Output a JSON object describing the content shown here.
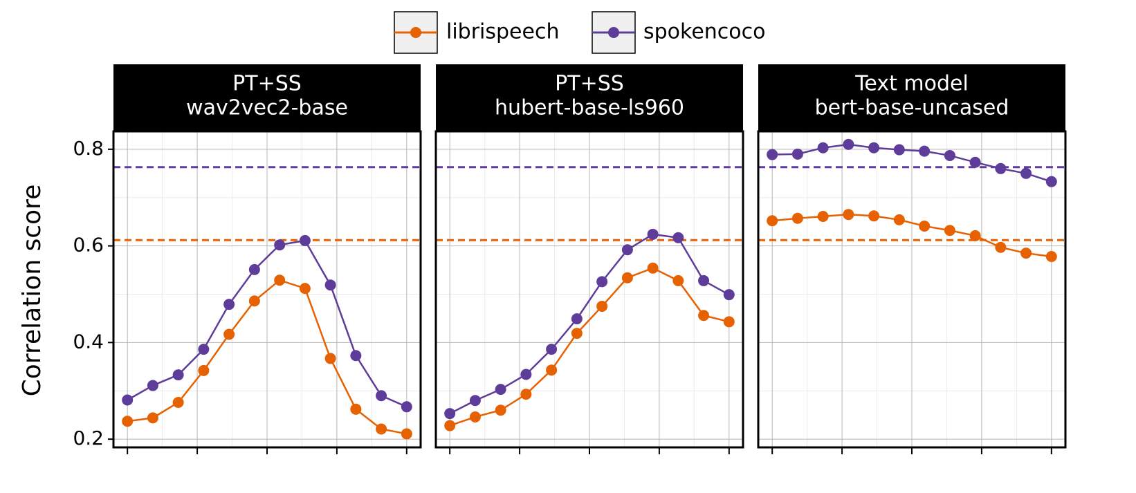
{
  "chart_data": [
    {
      "type": "line",
      "title": [
        "PT+SS",
        "wav2vec2-base"
      ],
      "ylabel": "Correlation score",
      "x": [
        0,
        0.091,
        0.182,
        0.273,
        0.364,
        0.455,
        0.545,
        0.636,
        0.727,
        0.818,
        0.909,
        1
      ],
      "xlim": [
        -0.05,
        1.05
      ],
      "xticks": [
        0,
        0.25,
        0.5,
        0.75,
        1
      ],
      "minor_xticks": [
        0.125,
        0.375,
        0.625,
        0.875
      ],
      "ylim": [
        0.183,
        0.837
      ],
      "yticks": [
        0.2,
        0.4,
        0.6,
        0.8
      ],
      "minor_yticks": [
        0.3,
        0.5,
        0.7
      ],
      "grid": true,
      "series": [
        {
          "name": "librispeech",
          "color": "#e66101",
          "reference": 0.612,
          "values": [
            0.237,
            0.244,
            0.276,
            0.342,
            0.417,
            0.486,
            0.529,
            0.512,
            0.367,
            0.262,
            0.221,
            0.211
          ]
        },
        {
          "name": "spokencoco",
          "color": "#5e3c99",
          "reference": 0.763,
          "values": [
            0.281,
            0.311,
            0.333,
            0.386,
            0.479,
            0.551,
            0.602,
            0.611,
            0.519,
            0.373,
            0.29,
            0.267
          ]
        }
      ]
    },
    {
      "type": "line",
      "title": [
        "PT+SS",
        "hubert-base-ls960"
      ],
      "x": [
        0,
        0.091,
        0.182,
        0.273,
        0.364,
        0.455,
        0.545,
        0.636,
        0.727,
        0.818,
        0.909,
        1
      ],
      "xlim": [
        -0.05,
        1.05
      ],
      "xticks": [
        0,
        0.25,
        0.5,
        0.75,
        1
      ],
      "minor_xticks": [
        0.125,
        0.375,
        0.625,
        0.875
      ],
      "ylim": [
        0.183,
        0.837
      ],
      "yticks": [
        0.2,
        0.4,
        0.6,
        0.8
      ],
      "minor_yticks": [
        0.3,
        0.5,
        0.7
      ],
      "grid": true,
      "series": [
        {
          "name": "librispeech",
          "color": "#e66101",
          "reference": 0.612,
          "values": [
            0.228,
            0.246,
            0.26,
            0.293,
            0.343,
            0.419,
            0.475,
            0.534,
            0.554,
            0.528,
            0.456,
            0.443
          ]
        },
        {
          "name": "spokencoco",
          "color": "#5e3c99",
          "reference": 0.763,
          "values": [
            0.253,
            0.28,
            0.303,
            0.334,
            0.386,
            0.449,
            0.526,
            0.592,
            0.624,
            0.617,
            0.528,
            0.499
          ]
        }
      ]
    },
    {
      "type": "line",
      "title": [
        "Text model",
        "bert-base-uncased"
      ],
      "x": [
        0,
        0.091,
        0.182,
        0.273,
        0.364,
        0.455,
        0.545,
        0.636,
        0.727,
        0.818,
        0.909,
        1
      ],
      "xlim": [
        -0.05,
        1.05
      ],
      "xticks": [
        0,
        0.25,
        0.5,
        0.75,
        1
      ],
      "minor_xticks": [
        0.125,
        0.375,
        0.625,
        0.875
      ],
      "ylim": [
        0.183,
        0.837
      ],
      "yticks": [
        0.2,
        0.4,
        0.6,
        0.8
      ],
      "minor_yticks": [
        0.3,
        0.5,
        0.7
      ],
      "grid": true,
      "series": [
        {
          "name": "librispeech",
          "color": "#e66101",
          "reference": 0.612,
          "values": [
            0.652,
            0.657,
            0.661,
            0.665,
            0.662,
            0.654,
            0.641,
            0.632,
            0.621,
            0.597,
            0.585,
            0.578
          ]
        },
        {
          "name": "spokencoco",
          "color": "#5e3c99",
          "reference": 0.763,
          "values": [
            0.789,
            0.79,
            0.803,
            0.81,
            0.803,
            0.799,
            0.796,
            0.787,
            0.773,
            0.76,
            0.75,
            0.733
          ]
        }
      ]
    }
  ]
}
